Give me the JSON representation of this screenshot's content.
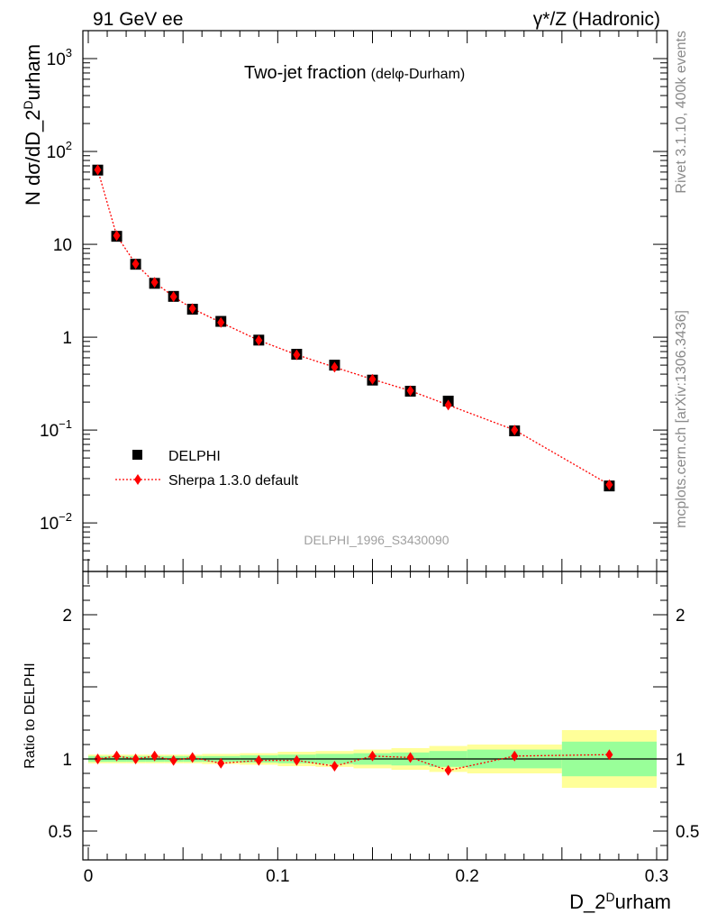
{
  "header": {
    "left": "91 GeV ee",
    "right_prefix": "γ*/Z",
    "right_suffix": "(Hadronic)"
  },
  "side_text": {
    "top": "Rivet 3.1.10,  400k events",
    "bottom": "mcplots.cern.ch [arXiv:1306.3436]"
  },
  "main_panel": {
    "title_main": "Two-jet fraction",
    "title_sub_pre": "(del",
    "title_sub_phi": "φ",
    "title_sub_post": "-Durham)",
    "ylabel": "N dσ/dD_2",
    "ylabel_sup": "D",
    "ylabel_post": "urham",
    "watermark": "DELPHI_1996_S3430090",
    "legend": [
      {
        "label": "DELPHI",
        "marker": "square",
        "color": "#000000"
      },
      {
        "label": "Sherpa 1.3.0 default",
        "marker": "diamond",
        "color": "#ff0000"
      }
    ]
  },
  "ratio_panel": {
    "ylabel": "Ratio to DELPHI"
  },
  "x_axis": {
    "label": "D_2",
    "label_sup": "D",
    "label_post": "urham"
  },
  "colors": {
    "data": "#000000",
    "mc": "#ff0000",
    "band_inner": "#99ff99",
    "band_outer": "#ffff99",
    "side_text": "#8a8a8a"
  },
  "chart_data": {
    "type": "scatter",
    "log_y_main": true,
    "x_range": [
      0,
      0.3
    ],
    "y_range_main": [
      0.003,
      2000
    ],
    "y_range_ratio": [
      0.3,
      2.3
    ],
    "x_ticks": [
      "0",
      "0.1",
      "0.2",
      "0.3"
    ],
    "y_ticks_main": [
      {
        "value": 1000,
        "base": "10",
        "exp": "3"
      },
      {
        "value": 100,
        "base": "10",
        "exp": "2"
      },
      {
        "value": 10,
        "base": "10",
        "exp": ""
      },
      {
        "value": 1,
        "base": "1",
        "exp": ""
      },
      {
        "value": 0.1,
        "base": "10",
        "exp": "−1"
      },
      {
        "value": 0.01,
        "base": "10",
        "exp": "−2"
      }
    ],
    "y_ticks_ratio": [
      "0.5",
      "1",
      "2"
    ],
    "x_bins": [
      [
        0.0,
        0.01
      ],
      [
        0.01,
        0.02
      ],
      [
        0.02,
        0.03
      ],
      [
        0.03,
        0.04
      ],
      [
        0.04,
        0.05
      ],
      [
        0.05,
        0.06
      ],
      [
        0.06,
        0.08
      ],
      [
        0.08,
        0.1
      ],
      [
        0.1,
        0.12
      ],
      [
        0.12,
        0.14
      ],
      [
        0.14,
        0.16
      ],
      [
        0.16,
        0.18
      ],
      [
        0.18,
        0.2
      ],
      [
        0.2,
        0.25
      ],
      [
        0.25,
        0.3
      ]
    ],
    "x": [
      0.005,
      0.015,
      0.025,
      0.035,
      0.045,
      0.055,
      0.07,
      0.09,
      0.11,
      0.13,
      0.15,
      0.17,
      0.19,
      0.225,
      0.275
    ],
    "series": [
      {
        "name": "DELPHI",
        "values": [
          63,
          12.2,
          6.1,
          3.8,
          2.75,
          2.0,
          1.48,
          0.93,
          0.655,
          0.5,
          0.345,
          0.262,
          0.205,
          0.098,
          0.025
        ]
      },
      {
        "name": "Sherpa 1.3.0 default",
        "values": [
          63.5,
          12.4,
          6.15,
          3.9,
          2.73,
          2.03,
          1.44,
          0.925,
          0.647,
          0.475,
          0.352,
          0.265,
          0.186,
          0.1,
          0.0258
        ]
      }
    ],
    "ratio": [
      1.0,
      1.02,
      1.0,
      1.02,
      0.99,
      1.01,
      0.97,
      0.99,
      0.99,
      0.95,
      1.02,
      1.01,
      0.92,
      1.02,
      1.03
    ],
    "band_inner_halfwidth": [
      0.02,
      0.02,
      0.02,
      0.02,
      0.02,
      0.02,
      0.02,
      0.025,
      0.03,
      0.035,
      0.04,
      0.045,
      0.055,
      0.065,
      0.12
    ],
    "band_outer_halfwidth": [
      0.03,
      0.03,
      0.03,
      0.03,
      0.03,
      0.03,
      0.035,
      0.04,
      0.05,
      0.055,
      0.065,
      0.075,
      0.09,
      0.1,
      0.2
    ]
  }
}
